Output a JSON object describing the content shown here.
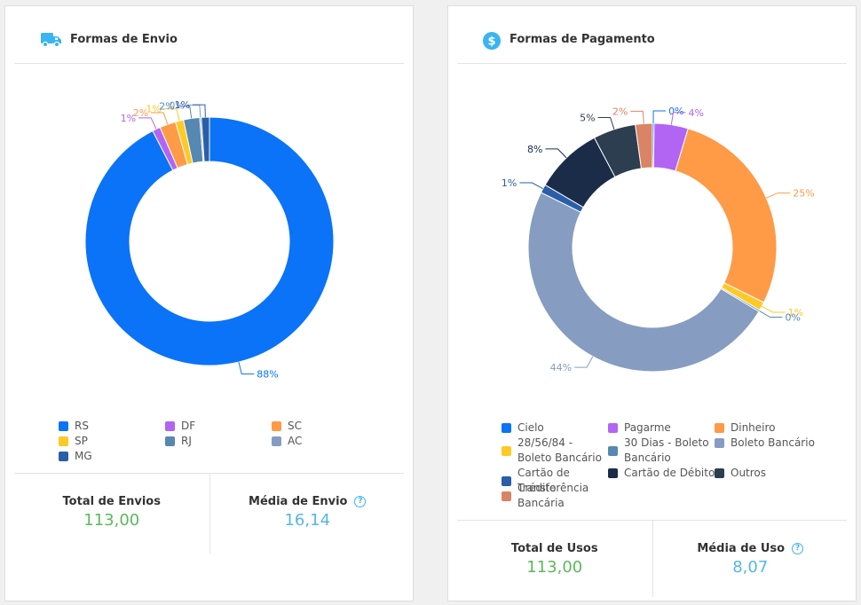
{
  "colors": {
    "total": "#5cb85c",
    "average": "#55b6e8",
    "title_icon": "#3ab4f2"
  },
  "shipping": {
    "title": "Formas de Envio",
    "icon": "truck-icon",
    "total_label": "Total de Envios",
    "total_value": "113,00",
    "average_label": "Média de Envio",
    "average_value": "16,14",
    "help_icon": "question-circle-icon"
  },
  "payment": {
    "title": "Formas de Pagamento",
    "icon": "dollar-circle-icon",
    "total_label": "Total de Usos",
    "total_value": "113,00",
    "average_label": "Média de Uso",
    "average_value": "8,07",
    "help_icon": "question-circle-icon"
  },
  "chart_data": [
    {
      "type": "pie",
      "style": "donut",
      "categories": [
        "RS",
        "DF",
        "SC",
        "SP",
        "RJ",
        "AC",
        "MG"
      ],
      "values": [
        88,
        1,
        2,
        1,
        2,
        0,
        1
      ],
      "labels": [
        "88%",
        "1%",
        "2%",
        "1%",
        "2%",
        "0%",
        "1%"
      ],
      "colors": [
        "#0a73f7",
        "#b264f3",
        "#ff9a47",
        "#ffc926",
        "#5688b2",
        "#869cc1",
        "#2a5ea8"
      ],
      "legend": "bottom"
    },
    {
      "type": "pie",
      "style": "donut",
      "categories": [
        "Cielo",
        "Pagarme",
        "Dinheiro",
        "28/56/84 - Boleto Bancário",
        "30 Dias - Boleto Bancário",
        "Boleto Bancário",
        "Cartão de Crédito",
        "Cartão de Débito",
        "Outros",
        "Transferência Bancária"
      ],
      "values": [
        0,
        4,
        25,
        1,
        0,
        44,
        1,
        8,
        5,
        2
      ],
      "labels": [
        "0%",
        "4%",
        "25%",
        "1%",
        "0%",
        "44%",
        "1%",
        "8%",
        "5%",
        "2%"
      ],
      "colors": [
        "#0a73f7",
        "#b264f3",
        "#ff9a47",
        "#ffc926",
        "#5688b2",
        "#869cc1",
        "#2a5ea8",
        "#1a2c48",
        "#2c3e50",
        "#d98465"
      ],
      "legend": "bottom"
    }
  ]
}
